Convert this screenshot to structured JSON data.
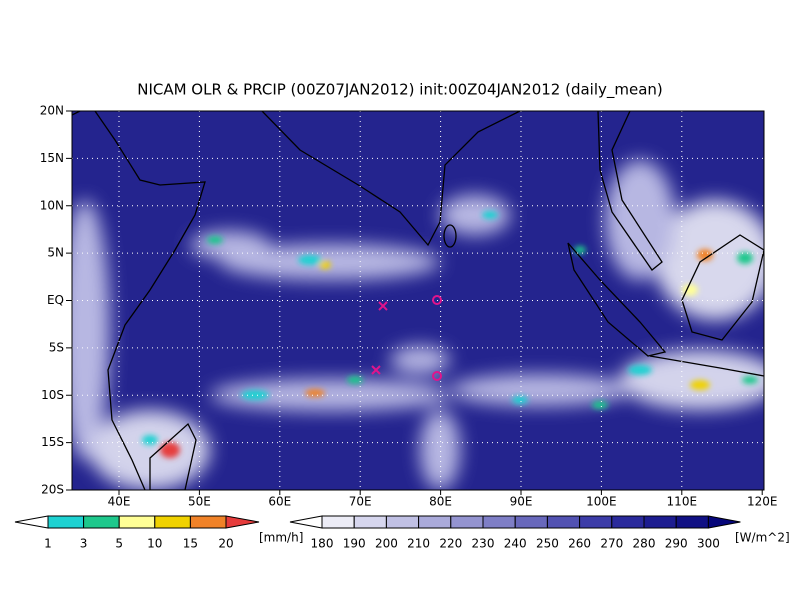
{
  "title": "NICAM OLR & PRCIP (00Z07JAN2012) init:00Z04JAN2012 (daily_mean)",
  "lat_labels": [
    "20N",
    "15N",
    "10N",
    "5N",
    "EQ",
    "5S",
    "10S",
    "15S",
    "20S"
  ],
  "lon_labels": [
    "40E",
    "50E",
    "60E",
    "70E",
    "80E",
    "90E",
    "100E",
    "110E",
    "120E"
  ],
  "precip_colorbar": {
    "labels": [
      1,
      3,
      5,
      10,
      15,
      20
    ],
    "unit": "[mm/h]",
    "colors": [
      "#ffffff",
      "#1ed2d2",
      "#1ec88c",
      "#ffff96",
      "#f0d200",
      "#f08228",
      "#e63c3c"
    ]
  },
  "olr_colorbar": {
    "labels": [
      180,
      190,
      200,
      210,
      220,
      230,
      240,
      250,
      260,
      270,
      280,
      290,
      300
    ],
    "unit": "[W/m^2]",
    "colors": [
      "#ffffff",
      "#ececf6",
      "#d6d6ee",
      "#c0c0e4",
      "#aaaada",
      "#9494d0",
      "#7e7ec6",
      "#6868bc",
      "#5252b2",
      "#3c3ca8",
      "#2a2a9c",
      "#1c1c90",
      "#101084",
      "#06067a"
    ]
  }
}
